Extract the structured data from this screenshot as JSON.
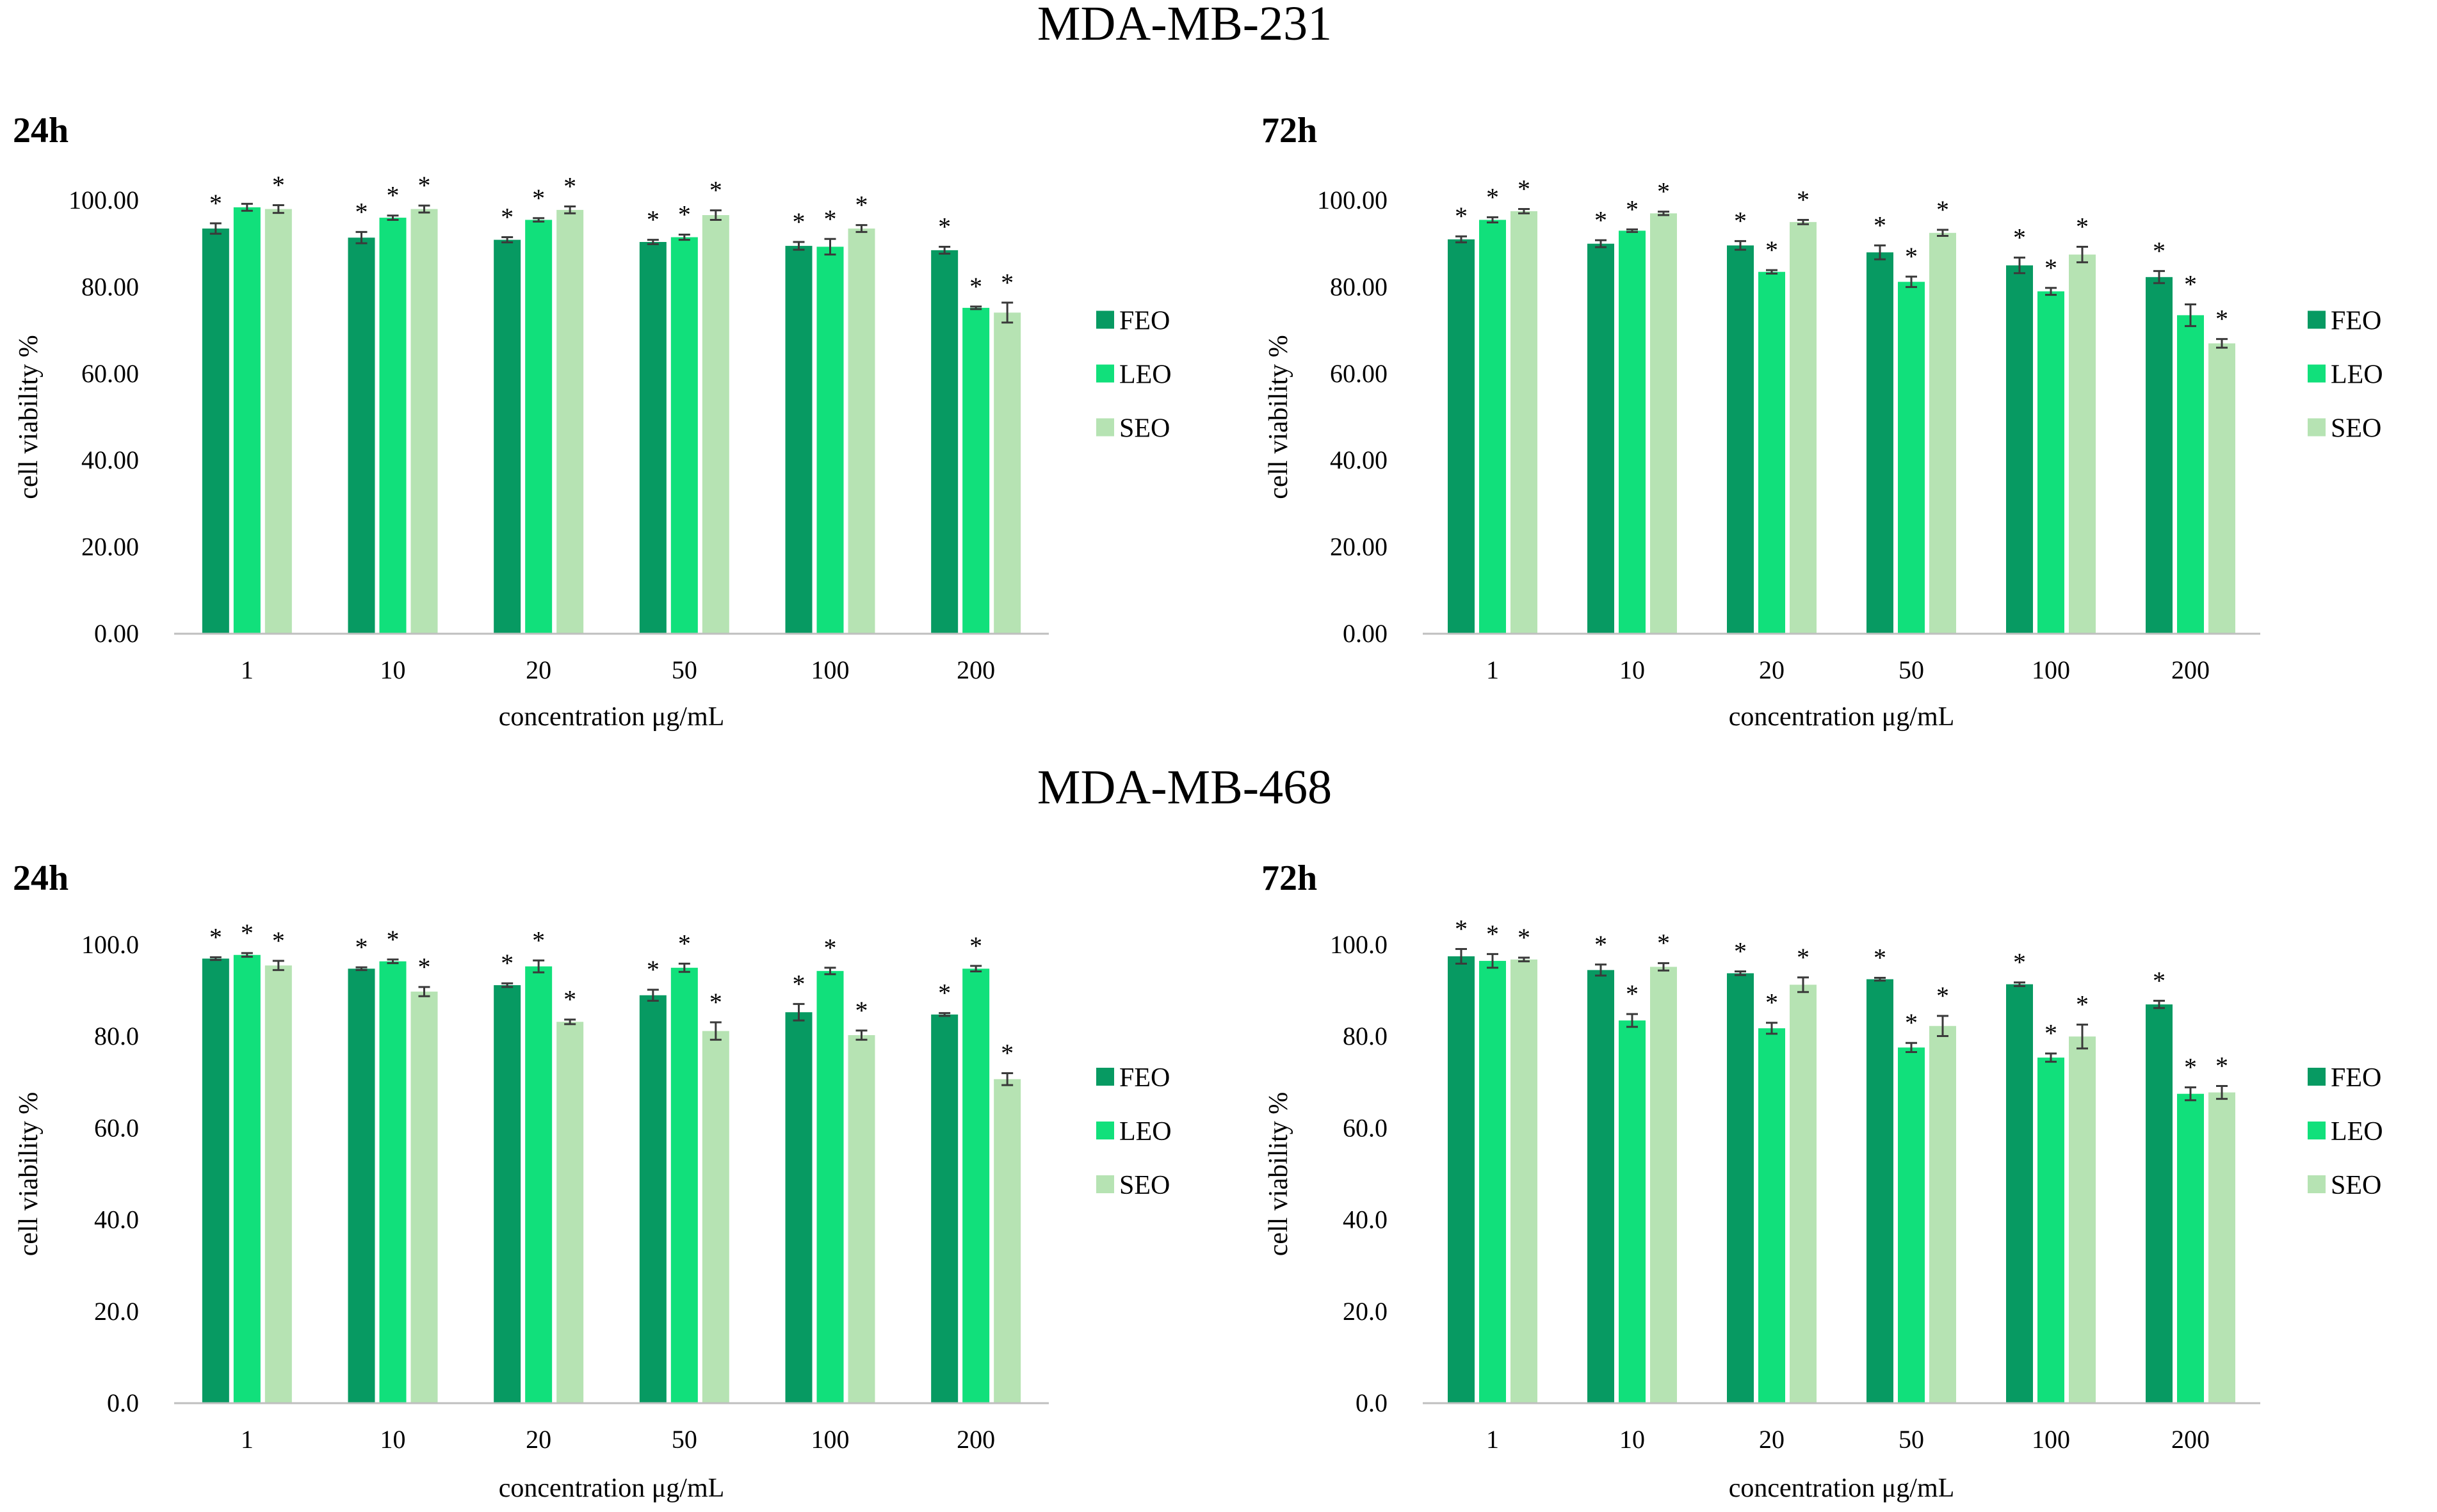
{
  "figure": {
    "colors": {
      "FEO": "#079A62",
      "LEO": "#11E07B",
      "SEO": "#B6E3B3",
      "axis": "#BFBFBF",
      "error": "#3a3a3a"
    },
    "sections": [
      {
        "title": "MDA-MB-231"
      },
      {
        "title": "MDA-MB-468"
      }
    ]
  },
  "chart_data": [
    {
      "type": "bar",
      "section": "MDA-MB-231",
      "title": "24h",
      "xlabel": "concentration μg/mL",
      "ylabel": "cell viability %",
      "categories": [
        "1",
        "10",
        "20",
        "50",
        "100",
        "200"
      ],
      "ylim": [
        0,
        100
      ],
      "yticks": [
        "0.00",
        "20.00",
        "40.00",
        "60.00",
        "80.00",
        "100.00"
      ],
      "series": [
        {
          "name": "FEO",
          "values": [
            93.5,
            91.4,
            90.9,
            90.4,
            89.5,
            88.5
          ],
          "errors": [
            1.2,
            1.3,
            0.6,
            0.5,
            0.9,
            0.8
          ],
          "marks": [
            "*",
            "*",
            "*",
            "*",
            "*",
            "*"
          ]
        },
        {
          "name": "LEO",
          "values": [
            98.4,
            96.0,
            95.5,
            91.5,
            89.3,
            75.2
          ],
          "errors": [
            0.8,
            0.5,
            0.4,
            0.6,
            1.8,
            0.3
          ],
          "marks": [
            "",
            "*",
            "*",
            "*",
            "*",
            "*"
          ]
        },
        {
          "name": "SEO",
          "values": [
            98.0,
            98.0,
            97.8,
            96.6,
            93.5,
            74.1
          ],
          "errors": [
            0.9,
            0.8,
            0.8,
            1.1,
            0.8,
            2.3
          ],
          "marks": [
            "*",
            "*",
            "*",
            "*",
            "*",
            "*"
          ]
        }
      ],
      "legend": "right"
    },
    {
      "type": "bar",
      "section": "MDA-MB-231",
      "title": "72h",
      "xlabel": "concentration μg/mL",
      "ylabel": "cell viability %",
      "categories": [
        "1",
        "10",
        "20",
        "50",
        "100",
        "200"
      ],
      "ylim": [
        0,
        100
      ],
      "yticks": [
        "0.00",
        "20.00",
        "40.00",
        "60.00",
        "80.00",
        "100.00"
      ],
      "series": [
        {
          "name": "FEO",
          "values": [
            91.0,
            90.0,
            89.6,
            88.0,
            85.0,
            82.3
          ],
          "errors": [
            0.7,
            0.8,
            1.0,
            1.6,
            1.8,
            1.4
          ],
          "marks": [
            "*",
            "*",
            "*",
            "*",
            "*",
            "*"
          ]
        },
        {
          "name": "LEO",
          "values": [
            95.5,
            93.0,
            83.5,
            81.2,
            79.0,
            73.5
          ],
          "errors": [
            0.6,
            0.3,
            0.4,
            1.2,
            0.8,
            2.5
          ],
          "marks": [
            "*",
            "*",
            "*",
            "*",
            "*",
            "*"
          ]
        },
        {
          "name": "SEO",
          "values": [
            97.5,
            97.0,
            95.0,
            92.5,
            87.5,
            67.0
          ],
          "errors": [
            0.5,
            0.4,
            0.5,
            0.7,
            1.8,
            1.0
          ],
          "marks": [
            "*",
            "*",
            "*",
            "*",
            "*",
            "*"
          ]
        }
      ],
      "legend": "right"
    },
    {
      "type": "bar",
      "section": "MDA-MB-468",
      "title": "24h",
      "xlabel": "concentration μg/mL",
      "ylabel": "cell viability %",
      "categories": [
        "1",
        "10",
        "20",
        "50",
        "100",
        "200"
      ],
      "ylim": [
        0,
        100
      ],
      "yticks": [
        "0.0",
        "20.0",
        "40.0",
        "60.0",
        "80.0",
        "100.0"
      ],
      "series": [
        {
          "name": "FEO",
          "values": [
            97.0,
            94.8,
            91.2,
            89.0,
            85.3,
            84.8
          ],
          "errors": [
            0.3,
            0.3,
            0.4,
            1.2,
            1.8,
            0.3
          ],
          "marks": [
            "*",
            "*",
            "*",
            "*",
            "*",
            "*"
          ]
        },
        {
          "name": "LEO",
          "values": [
            97.8,
            96.4,
            95.3,
            95.0,
            94.3,
            94.8
          ],
          "errors": [
            0.4,
            0.4,
            1.3,
            0.9,
            0.7,
            0.6
          ],
          "marks": [
            "*",
            "*",
            "*",
            "*",
            "*",
            "*"
          ]
        },
        {
          "name": "SEO",
          "values": [
            95.5,
            89.8,
            83.2,
            81.2,
            80.3,
            70.7
          ],
          "errors": [
            1.0,
            1.0,
            0.5,
            1.9,
            1.0,
            1.3
          ],
          "marks": [
            "*",
            "*",
            "*",
            "*",
            "*",
            "*"
          ]
        }
      ],
      "legend": "right"
    },
    {
      "type": "bar",
      "section": "MDA-MB-468",
      "title": "72h",
      "xlabel": "concentration μg/mL",
      "ylabel": "cell viability %",
      "categories": [
        "1",
        "10",
        "20",
        "50",
        "100",
        "200"
      ],
      "ylim": [
        0,
        100
      ],
      "yticks": [
        "0.0",
        "20.0",
        "40.0",
        "60.0",
        "80.0",
        "100.0"
      ],
      "series": [
        {
          "name": "FEO",
          "values": [
            97.5,
            94.5,
            93.8,
            92.5,
            91.4,
            87.0
          ],
          "errors": [
            1.6,
            1.2,
            0.4,
            0.3,
            0.4,
            0.8
          ],
          "marks": [
            "*",
            "*",
            "*",
            "*",
            "*",
            "*"
          ]
        },
        {
          "name": "LEO",
          "values": [
            96.5,
            83.5,
            81.8,
            77.6,
            75.4,
            67.5
          ],
          "errors": [
            1.5,
            1.4,
            1.2,
            1.0,
            0.9,
            1.4
          ],
          "marks": [
            "*",
            "*",
            "*",
            "*",
            "*",
            "*"
          ]
        },
        {
          "name": "SEO",
          "values": [
            96.8,
            95.2,
            91.3,
            82.3,
            80.0,
            67.8
          ],
          "errors": [
            0.4,
            0.8,
            1.6,
            2.2,
            2.6,
            1.4
          ],
          "marks": [
            "*",
            "*",
            "*",
            "*",
            "*",
            "*"
          ]
        }
      ],
      "legend": "right"
    }
  ]
}
